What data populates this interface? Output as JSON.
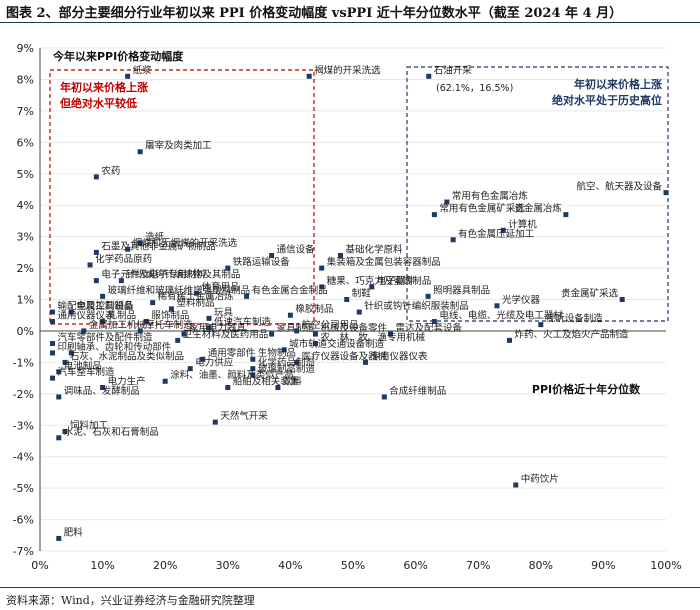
{
  "header": {
    "title": "图表 2、部分主要细分行业年初以来 PPI 价格变动幅度 vsPPI 近十年分位数水平（截至 2024 年 4 月）"
  },
  "source": "资料来源：Wind，兴业证券经济与金融研究院整理",
  "annotations": {
    "y_title": "今年以来PPI价格变动幅度",
    "x_title": "PPI价格近十年分位数",
    "left_box_line1": "年初以来价格上涨",
    "left_box_line2": "但绝对水平较低",
    "right_box_line1": "年初以来价格上涨",
    "right_box_line2": "绝对水平处于历史高位",
    "oil_coords": "(62.1%，16.5%)"
  },
  "colors": {
    "marker": "#1f3864",
    "red": "#c00000",
    "blue": "#1f3864",
    "grid": "#e8e8e8"
  },
  "chart_data": {
    "type": "scatter",
    "xlabel": "PPI价格近十年分位数",
    "ylabel": "今年以来PPI价格变动幅度",
    "xlim": [
      0,
      100
    ],
    "ylim": [
      -7,
      9
    ],
    "x_ticks": [
      "0%",
      "10%",
      "20%",
      "30%",
      "40%",
      "50%",
      "60%",
      "70%",
      "80%",
      "90%",
      "100%"
    ],
    "y_ticks": [
      "9%",
      "8%",
      "7%",
      "6%",
      "5%",
      "4%",
      "3%",
      "2%",
      "1%",
      "0%",
      "-1%",
      "-2%",
      "-3%",
      "-4%",
      "-5%",
      "-6%",
      "-7%"
    ],
    "points": [
      {
        "label": "纸浆",
        "x": 14,
        "y": 8.1
      },
      {
        "label": "褐煤的开采洗选",
        "x": 43,
        "y": 8.1
      },
      {
        "label": "石油开采",
        "x": 62.1,
        "y": 8.1
      },
      {
        "label": "屠宰及肉类加工",
        "x": 16,
        "y": 5.7
      },
      {
        "label": "农药",
        "x": 9,
        "y": 4.9
      },
      {
        "label": "航空、航天器及设备",
        "x": 100,
        "y": 4.4
      },
      {
        "label": "常用有色金属冶炼",
        "x": 65,
        "y": 4.1
      },
      {
        "label": "常用有色金属矿采选",
        "x": 63,
        "y": 3.7
      },
      {
        "label": "贵金属冶炼",
        "x": 84,
        "y": 3.7
      },
      {
        "label": "计算机",
        "x": 74,
        "y": 3.2
      },
      {
        "label": "造纸",
        "x": 16,
        "y": 2.8
      },
      {
        "label": "有色金属压延加工",
        "x": 66,
        "y": 2.9
      },
      {
        "label": "石墨及其他非金属矿物制品",
        "x": 9,
        "y": 2.5
      },
      {
        "label": "烟煤和无烟煤的开采洗选",
        "x": 14,
        "y": 2.6
      },
      {
        "label": "通信设备",
        "x": 37,
        "y": 2.4
      },
      {
        "label": "基础化学原料",
        "x": 48,
        "y": 2.4
      },
      {
        "label": "化学药品原药",
        "x": 8,
        "y": 2.1
      },
      {
        "label": "铁路运输设备",
        "x": 30,
        "y": 2.0
      },
      {
        "label": "集装箱及金属包装容器制品",
        "x": 45,
        "y": 2.0
      },
      {
        "label": "电子元件及电子专用材料",
        "x": 9,
        "y": 1.6
      },
      {
        "label": "针织或钩针编织物及其制品",
        "x": 13,
        "y": 1.6
      },
      {
        "label": "糖果、巧克力及蜜饯制品",
        "x": 45,
        "y": 1.4
      },
      {
        "label": "电子器件",
        "x": 53,
        "y": 1.4
      },
      {
        "label": "玻璃纤维和玻璃纤维增强塑料制品",
        "x": 10,
        "y": 1.1
      },
      {
        "label": "体育用品",
        "x": 25,
        "y": 1.2
      },
      {
        "label": "有色金属合金制品",
        "x": 33,
        "y": 1.1
      },
      {
        "label": "制鞋",
        "x": 49,
        "y": 1.0
      },
      {
        "label": "照明器具制品",
        "x": 62,
        "y": 1.1
      },
      {
        "label": "贵金属矿采选",
        "x": 93,
        "y": 1.0
      },
      {
        "label": "光学仪器",
        "x": 73,
        "y": 0.8
      },
      {
        "label": "稀有稀土金属冶炼",
        "x": 18,
        "y": 0.9
      },
      {
        "label": "塑料制品",
        "x": 21,
        "y": 0.7
      },
      {
        "label": "金属工具制品",
        "x": 5,
        "y": 0.6
      },
      {
        "label": "输配电及控制设备",
        "x": 2,
        "y": 0.6
      },
      {
        "label": "玩具",
        "x": 27,
        "y": 0.4
      },
      {
        "label": "橡胶制品",
        "x": 40,
        "y": 0.5
      },
      {
        "label": "针织或钩针编织服装制品",
        "x": 51,
        "y": 0.6
      },
      {
        "label": "通用仪器仪表",
        "x": 2,
        "y": 0.3
      },
      {
        "label": "乳制品",
        "x": 10,
        "y": 0.3
      },
      {
        "label": "服饰制品",
        "x": 17,
        "y": 0.3
      },
      {
        "label": "低速汽车制造",
        "x": 27,
        "y": 0.1
      },
      {
        "label": "电线、电缆、光缆及电工器材",
        "x": 63,
        "y": 0.3
      },
      {
        "label": "视听设备制造",
        "x": 80,
        "y": 0.2
      },
      {
        "label": "金属加工机械",
        "x": 7,
        "y": 0.0
      },
      {
        "label": "摩托车制造",
        "x": 16,
        "y": 0.0
      },
      {
        "label": "家用电力器具",
        "x": 23,
        "y": -0.1
      },
      {
        "label": "家具制造",
        "x": 37,
        "y": -0.1
      },
      {
        "label": "航空公司用品",
        "x": 41,
        "y": 0.0
      },
      {
        "label": "机械及设备零件",
        "x": 44,
        "y": -0.1
      },
      {
        "label": "雷达及配套设备",
        "x": 56,
        "y": -0.1
      },
      {
        "label": "炸药、火工及焰火产品制造",
        "x": 75,
        "y": -0.3
      },
      {
        "label": "卫生材料及医药用品",
        "x": 22,
        "y": -0.3
      },
      {
        "label": "农、林、牧、渔专用机械",
        "x": 44,
        "y": -0.4
      },
      {
        "label": "汽车零部件及配件制造",
        "x": 2,
        "y": -0.4
      },
      {
        "label": "城市轨道交通设备制造",
        "x": 39,
        "y": -0.6
      },
      {
        "label": "印刷",
        "x": 2,
        "y": -0.7
      },
      {
        "label": "轴承、齿轮和传动部件",
        "x": 5,
        "y": -0.7
      },
      {
        "label": "通用零部件",
        "x": 26,
        "y": -0.9
      },
      {
        "label": "生物制品",
        "x": 34,
        "y": -0.9
      },
      {
        "label": "石灰、水泥制品及类似制品",
        "x": 4,
        "y": -1.0
      },
      {
        "label": "医疗仪器设备及器械",
        "x": 41,
        "y": -1.0
      },
      {
        "label": "专用仪器仪表",
        "x": 52,
        "y": -1.0
      },
      {
        "label": "电力供应",
        "x": 24,
        "y": -1.2
      },
      {
        "label": "化学药品制剂",
        "x": 34,
        "y": -1.2
      },
      {
        "label": "电池制品",
        "x": 3,
        "y": -1.3
      },
      {
        "label": "玻璃制品制造",
        "x": 34,
        "y": -1.4
      },
      {
        "label": "涂料、油墨、颜料及类似产品",
        "x": 20,
        "y": -1.6
      },
      {
        "label": "汽车整车制造",
        "x": 2,
        "y": -1.5
      },
      {
        "label": "电力生产",
        "x": 10,
        "y": -1.8
      },
      {
        "label": "船舶及相关装置",
        "x": 30,
        "y": -1.8
      },
      {
        "label": "饮料",
        "x": 38,
        "y": -1.8
      },
      {
        "label": "合成纤维制品",
        "x": 55,
        "y": -2.1
      },
      {
        "label": "调味品、发酵制品",
        "x": 3,
        "y": -2.1
      },
      {
        "label": "饲料加工",
        "x": 4,
        "y": -3.2
      },
      {
        "label": "水泥、石灰和石膏制品",
        "x": 3,
        "y": -3.4
      },
      {
        "label": "天然气开采",
        "x": 28,
        "y": -2.9
      },
      {
        "label": "中药饮片",
        "x": 76,
        "y": -4.9
      },
      {
        "label": "肥料",
        "x": 3,
        "y": -6.6
      }
    ]
  }
}
